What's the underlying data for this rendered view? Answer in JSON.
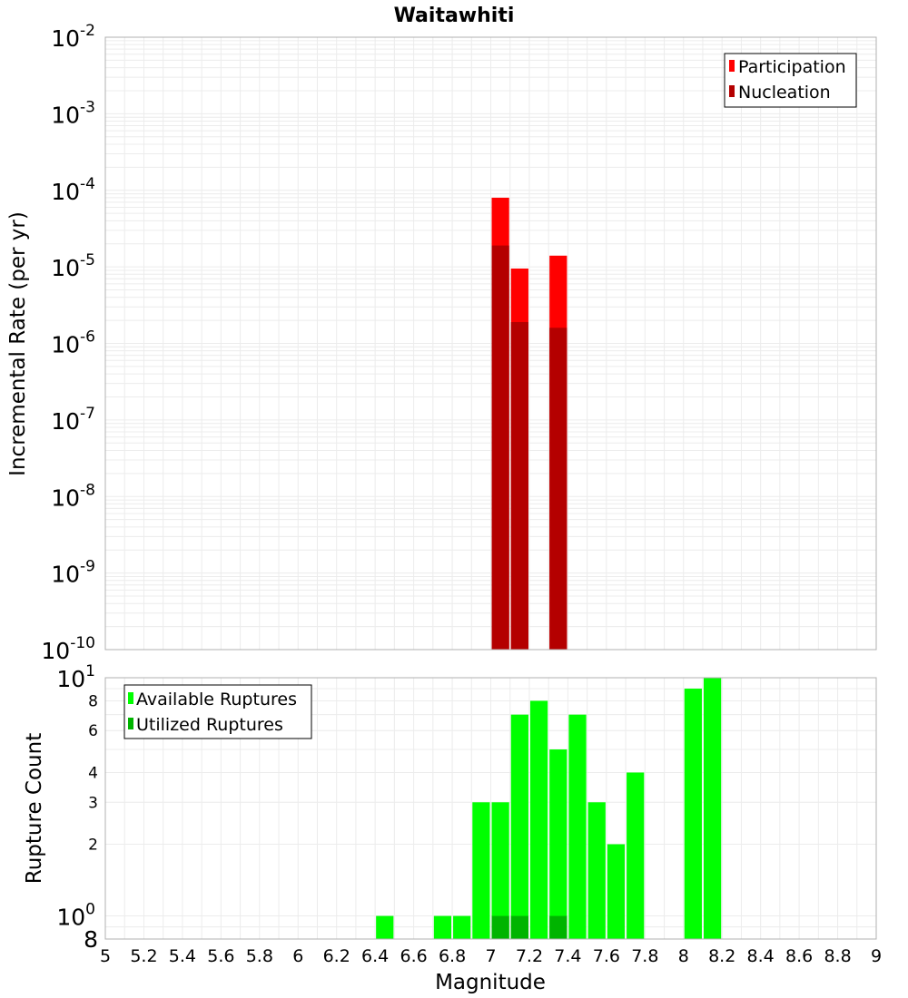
{
  "chart_data": {
    "title": "Waitawhiti",
    "xlabel": "Magnitude",
    "x_ticks": [
      "5",
      "5.2",
      "5.4",
      "5.6",
      "5.8",
      "6",
      "6.2",
      "6.4",
      "6.6",
      "6.8",
      "7",
      "7.2",
      "7.4",
      "7.6",
      "7.8",
      "8",
      "8.2",
      "8.4",
      "8.6",
      "8.8",
      "9"
    ],
    "xlim": [
      5,
      9
    ],
    "grid": true,
    "top_panel": {
      "type": "bar",
      "ylabel": "Incremental Rate (per yr)",
      "y_scale": "log",
      "ylim": [
        1e-10,
        0.01
      ],
      "y_tick_labels": [
        {
          "base": "10",
          "exp": "-2"
        },
        {
          "base": "10",
          "exp": "-3"
        },
        {
          "base": "10",
          "exp": "-4"
        },
        {
          "base": "10",
          "exp": "-5"
        },
        {
          "base": "10",
          "exp": "-6"
        },
        {
          "base": "10",
          "exp": "-7"
        },
        {
          "base": "10",
          "exp": "-8"
        },
        {
          "base": "10",
          "exp": "-9"
        },
        {
          "base": "10",
          "exp": "-10"
        }
      ],
      "legend_position": "top-right",
      "series": [
        {
          "name": "Participation",
          "color": "#ff0000",
          "x": [
            7.05,
            7.15,
            7.35
          ],
          "values": [
            8e-05,
            9.5e-06,
            1.4e-05
          ]
        },
        {
          "name": "Nucleation",
          "color": "#b40000",
          "x": [
            7.05,
            7.15,
            7.35
          ],
          "values": [
            1.9e-05,
            1.9e-06,
            1.6e-06
          ]
        }
      ]
    },
    "bottom_panel": {
      "type": "bar",
      "ylabel": "Rupture Count",
      "y_scale": "log",
      "ylim": [
        0.8,
        10
      ],
      "y_tick_labels": [
        {
          "value": 10,
          "base": "10",
          "exp": "1"
        },
        {
          "value": 8,
          "text": "8"
        },
        {
          "value": 6,
          "text": "6"
        },
        {
          "value": 4,
          "text": "4"
        },
        {
          "value": 3,
          "text": "3"
        },
        {
          "value": 2,
          "text": "2"
        },
        {
          "value": 1,
          "base": "10",
          "exp": "0"
        },
        {
          "value": 0.8,
          "text": "8"
        }
      ],
      "legend_position": "top-left",
      "series": [
        {
          "name": "Available Ruptures",
          "color": "#00ff00",
          "x": [
            6.45,
            6.75,
            6.85,
            6.95,
            7.05,
            7.15,
            7.25,
            7.35,
            7.45,
            7.55,
            7.65,
            7.75,
            8.05,
            8.15
          ],
          "values": [
            1,
            1,
            1,
            3,
            3,
            7,
            8,
            5,
            7,
            3,
            2,
            4,
            9,
            10
          ]
        },
        {
          "name": "Utilized Ruptures",
          "color": "#00b400",
          "x": [
            7.05,
            7.15,
            7.35
          ],
          "values": [
            1,
            1,
            1
          ]
        }
      ]
    }
  }
}
